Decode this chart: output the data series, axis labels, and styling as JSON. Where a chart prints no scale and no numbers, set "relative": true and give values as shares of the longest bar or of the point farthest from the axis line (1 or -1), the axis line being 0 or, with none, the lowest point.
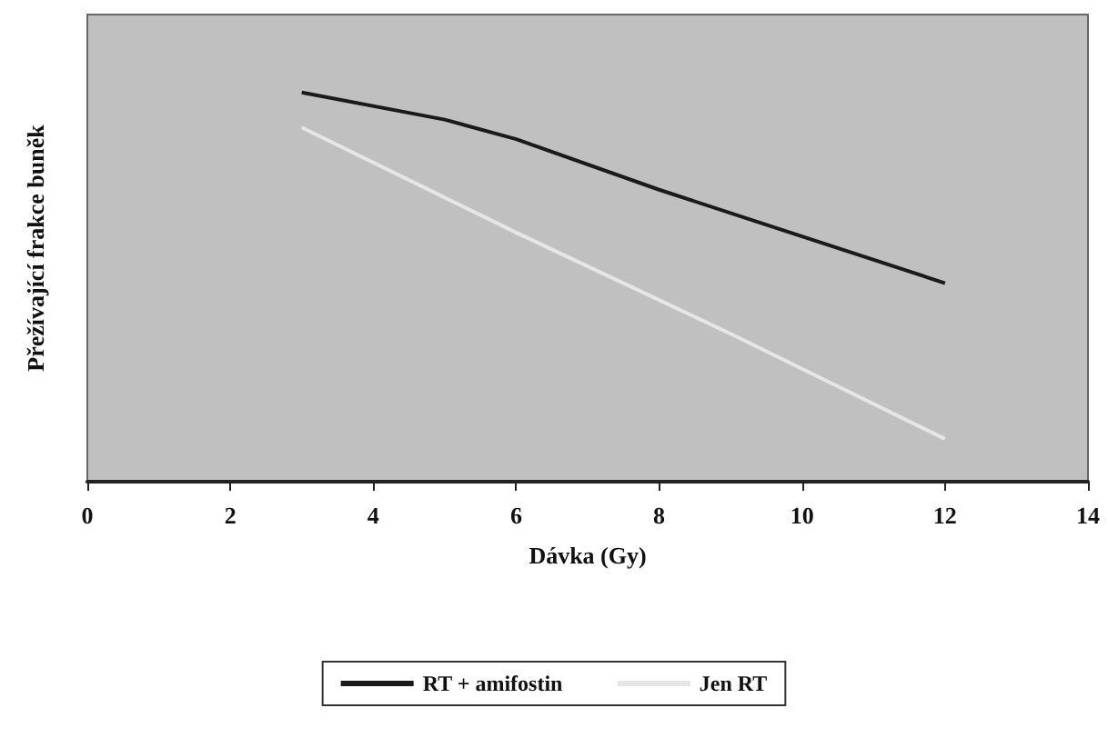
{
  "chart_data": {
    "type": "line",
    "relative": true,
    "xlabel": "Dávka (Gy)",
    "ylabel": "Přežívající frakce buněk",
    "xlim": [
      0,
      14
    ],
    "xticks": [
      0,
      2,
      4,
      6,
      8,
      10,
      12,
      14
    ],
    "legend": "bottom",
    "grid": false,
    "marker": "none",
    "line_style": "solid",
    "series": [
      {
        "name": "RT + amifostin",
        "color": "#1a1a1a",
        "x": [
          3,
          5,
          6,
          8,
          10,
          12
        ],
        "values": [
          1,
          0.93,
          0.88,
          0.75,
          0.63,
          0.51
        ]
      },
      {
        "name": "Jen RT",
        "color": "#e6e6e6",
        "x": [
          3,
          6,
          9,
          12
        ],
        "values": [
          0.91,
          0.64,
          0.38,
          0.11
        ]
      }
    ]
  }
}
